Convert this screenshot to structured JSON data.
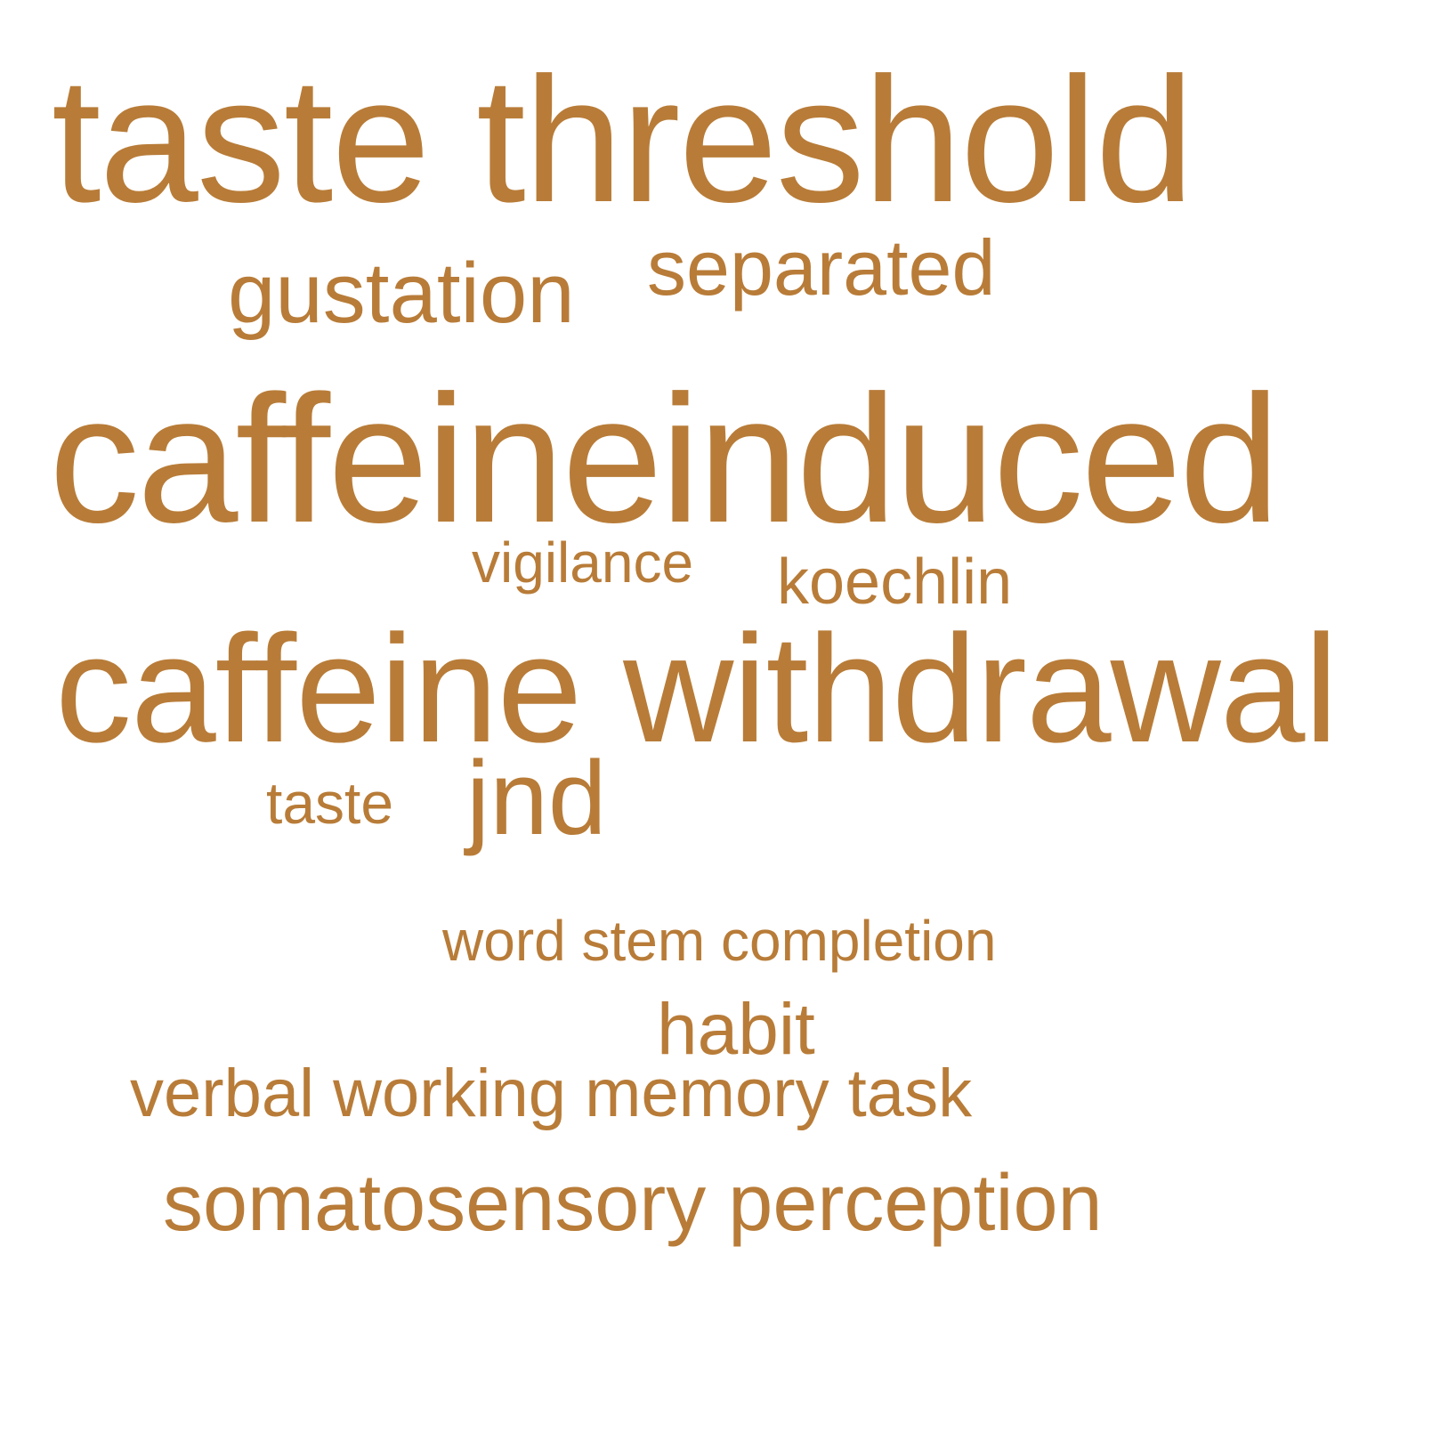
{
  "color": "#b87c38",
  "words": [
    {
      "text": "taste threshold"
    },
    {
      "text": "gustation"
    },
    {
      "text": "separated"
    },
    {
      "text": "caffeineinduced"
    },
    {
      "text": "vigilance"
    },
    {
      "text": "koechlin"
    },
    {
      "text": "caffeine withdrawal"
    },
    {
      "text": "taste"
    },
    {
      "text": "jnd"
    },
    {
      "text": "word stem completion"
    },
    {
      "text": "habit"
    },
    {
      "text": "verbal working memory task"
    },
    {
      "text": "somatosensory perception"
    }
  ]
}
